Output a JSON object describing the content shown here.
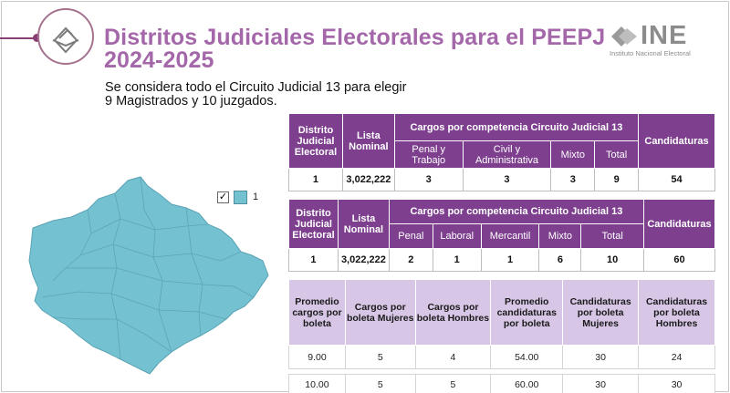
{
  "header": {
    "title": "Distritos Judiciales Electorales para el PEEPJ 2024-2025",
    "subtitle_line1": "Se considera todo el Circuito Judicial 13 para elegir",
    "subtitle_line2": "9 Magistrados y 10 juzgados.",
    "logo_word": "INE",
    "logo_sub": "Instituto Nacional Electoral"
  },
  "colors": {
    "accent": "#a467a9",
    "table_header": "#7d3f8e",
    "table_header_light": "#d7c6e6",
    "map_fill": "#74c1d1"
  },
  "legend": {
    "checked": "✓",
    "label": "1"
  },
  "table1": {
    "h_distrito": "Distrito Judicial Electoral",
    "h_lista": "Lista Nominal",
    "h_cargos": "Cargos por competencia Circuito Judicial 13",
    "h_candidaturas": "Candidaturas",
    "sub": [
      "Penal y Trabajo",
      "Civil y Administrativa",
      "Mixto",
      "Total"
    ],
    "row": [
      "1",
      "3,022,222",
      "3",
      "3",
      "3",
      "9",
      "54"
    ]
  },
  "table2": {
    "h_distrito": "Distrito Judicial Electoral",
    "h_lista": "Lista Nominal",
    "h_cargos": "Cargos por competencia Circuito Judicial 13",
    "h_candidaturas": "Candidaturas",
    "sub": [
      "Penal",
      "Laboral",
      "Mercantil",
      "Mixto",
      "Total"
    ],
    "row": [
      "1",
      "3,022,222",
      "2",
      "1",
      "1",
      "6",
      "10",
      "60"
    ]
  },
  "table3": {
    "headers": [
      "Promedio cargos por boleta",
      "Cargos por boleta Mujeres",
      "Cargos por boleta Hombres",
      "Promedio candidaturas por boleta",
      "Candidaturas por boleta Mujeres",
      "Candidaturas por boleta Hombres"
    ],
    "rows": [
      [
        "9.00",
        "5",
        "4",
        "54.00",
        "30",
        "24"
      ],
      [
        "10.00",
        "5",
        "5",
        "60.00",
        "30",
        "30"
      ]
    ]
  }
}
